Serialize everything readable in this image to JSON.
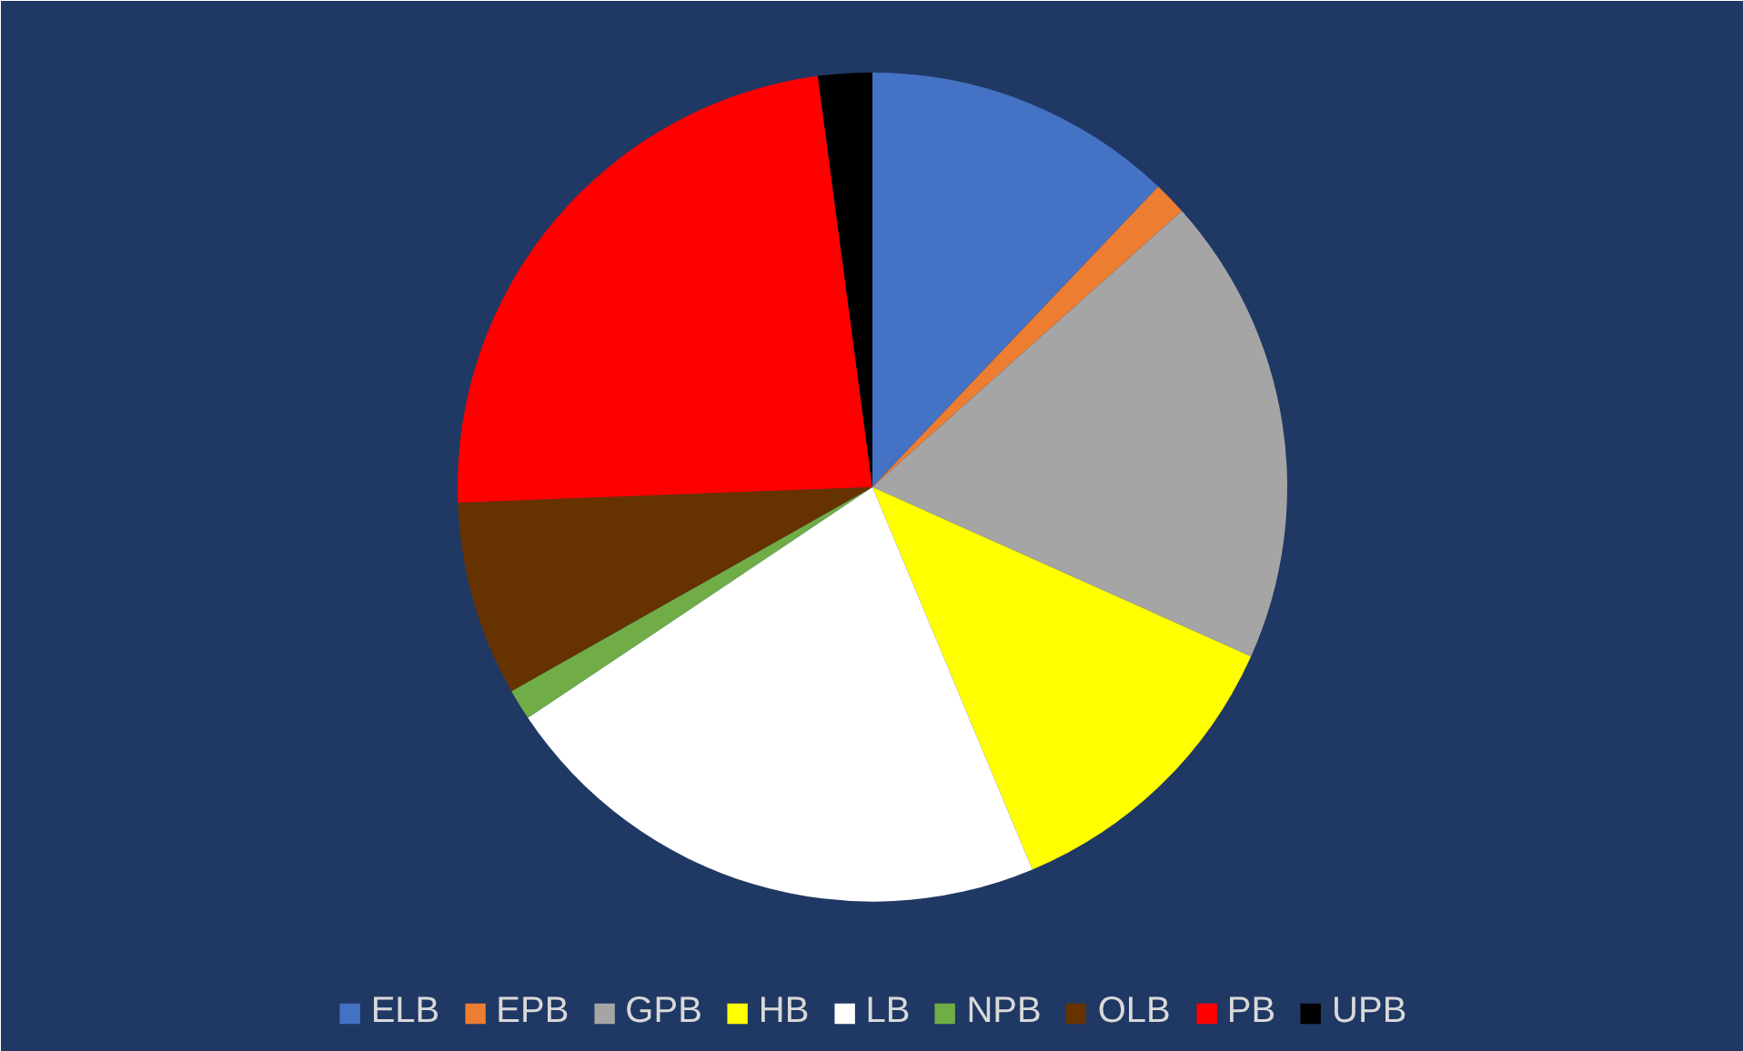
{
  "chart_data": {
    "type": "pie",
    "categories": [
      "ELB",
      "EPB",
      "GPB",
      "HB",
      "LB",
      "NPB",
      "OLB",
      "PB",
      "UPB"
    ],
    "values": [
      12.1,
      1.3,
      18.3,
      12.0,
      21.9,
      1.2,
      7.6,
      23.5,
      2.1
    ],
    "colors": [
      "#4472c4",
      "#ed7d31",
      "#a5a5a5",
      "#ffff00",
      "#ffffff",
      "#70ad47",
      "#663300",
      "#ff0000",
      "#000000"
    ],
    "legend": "bottom"
  }
}
